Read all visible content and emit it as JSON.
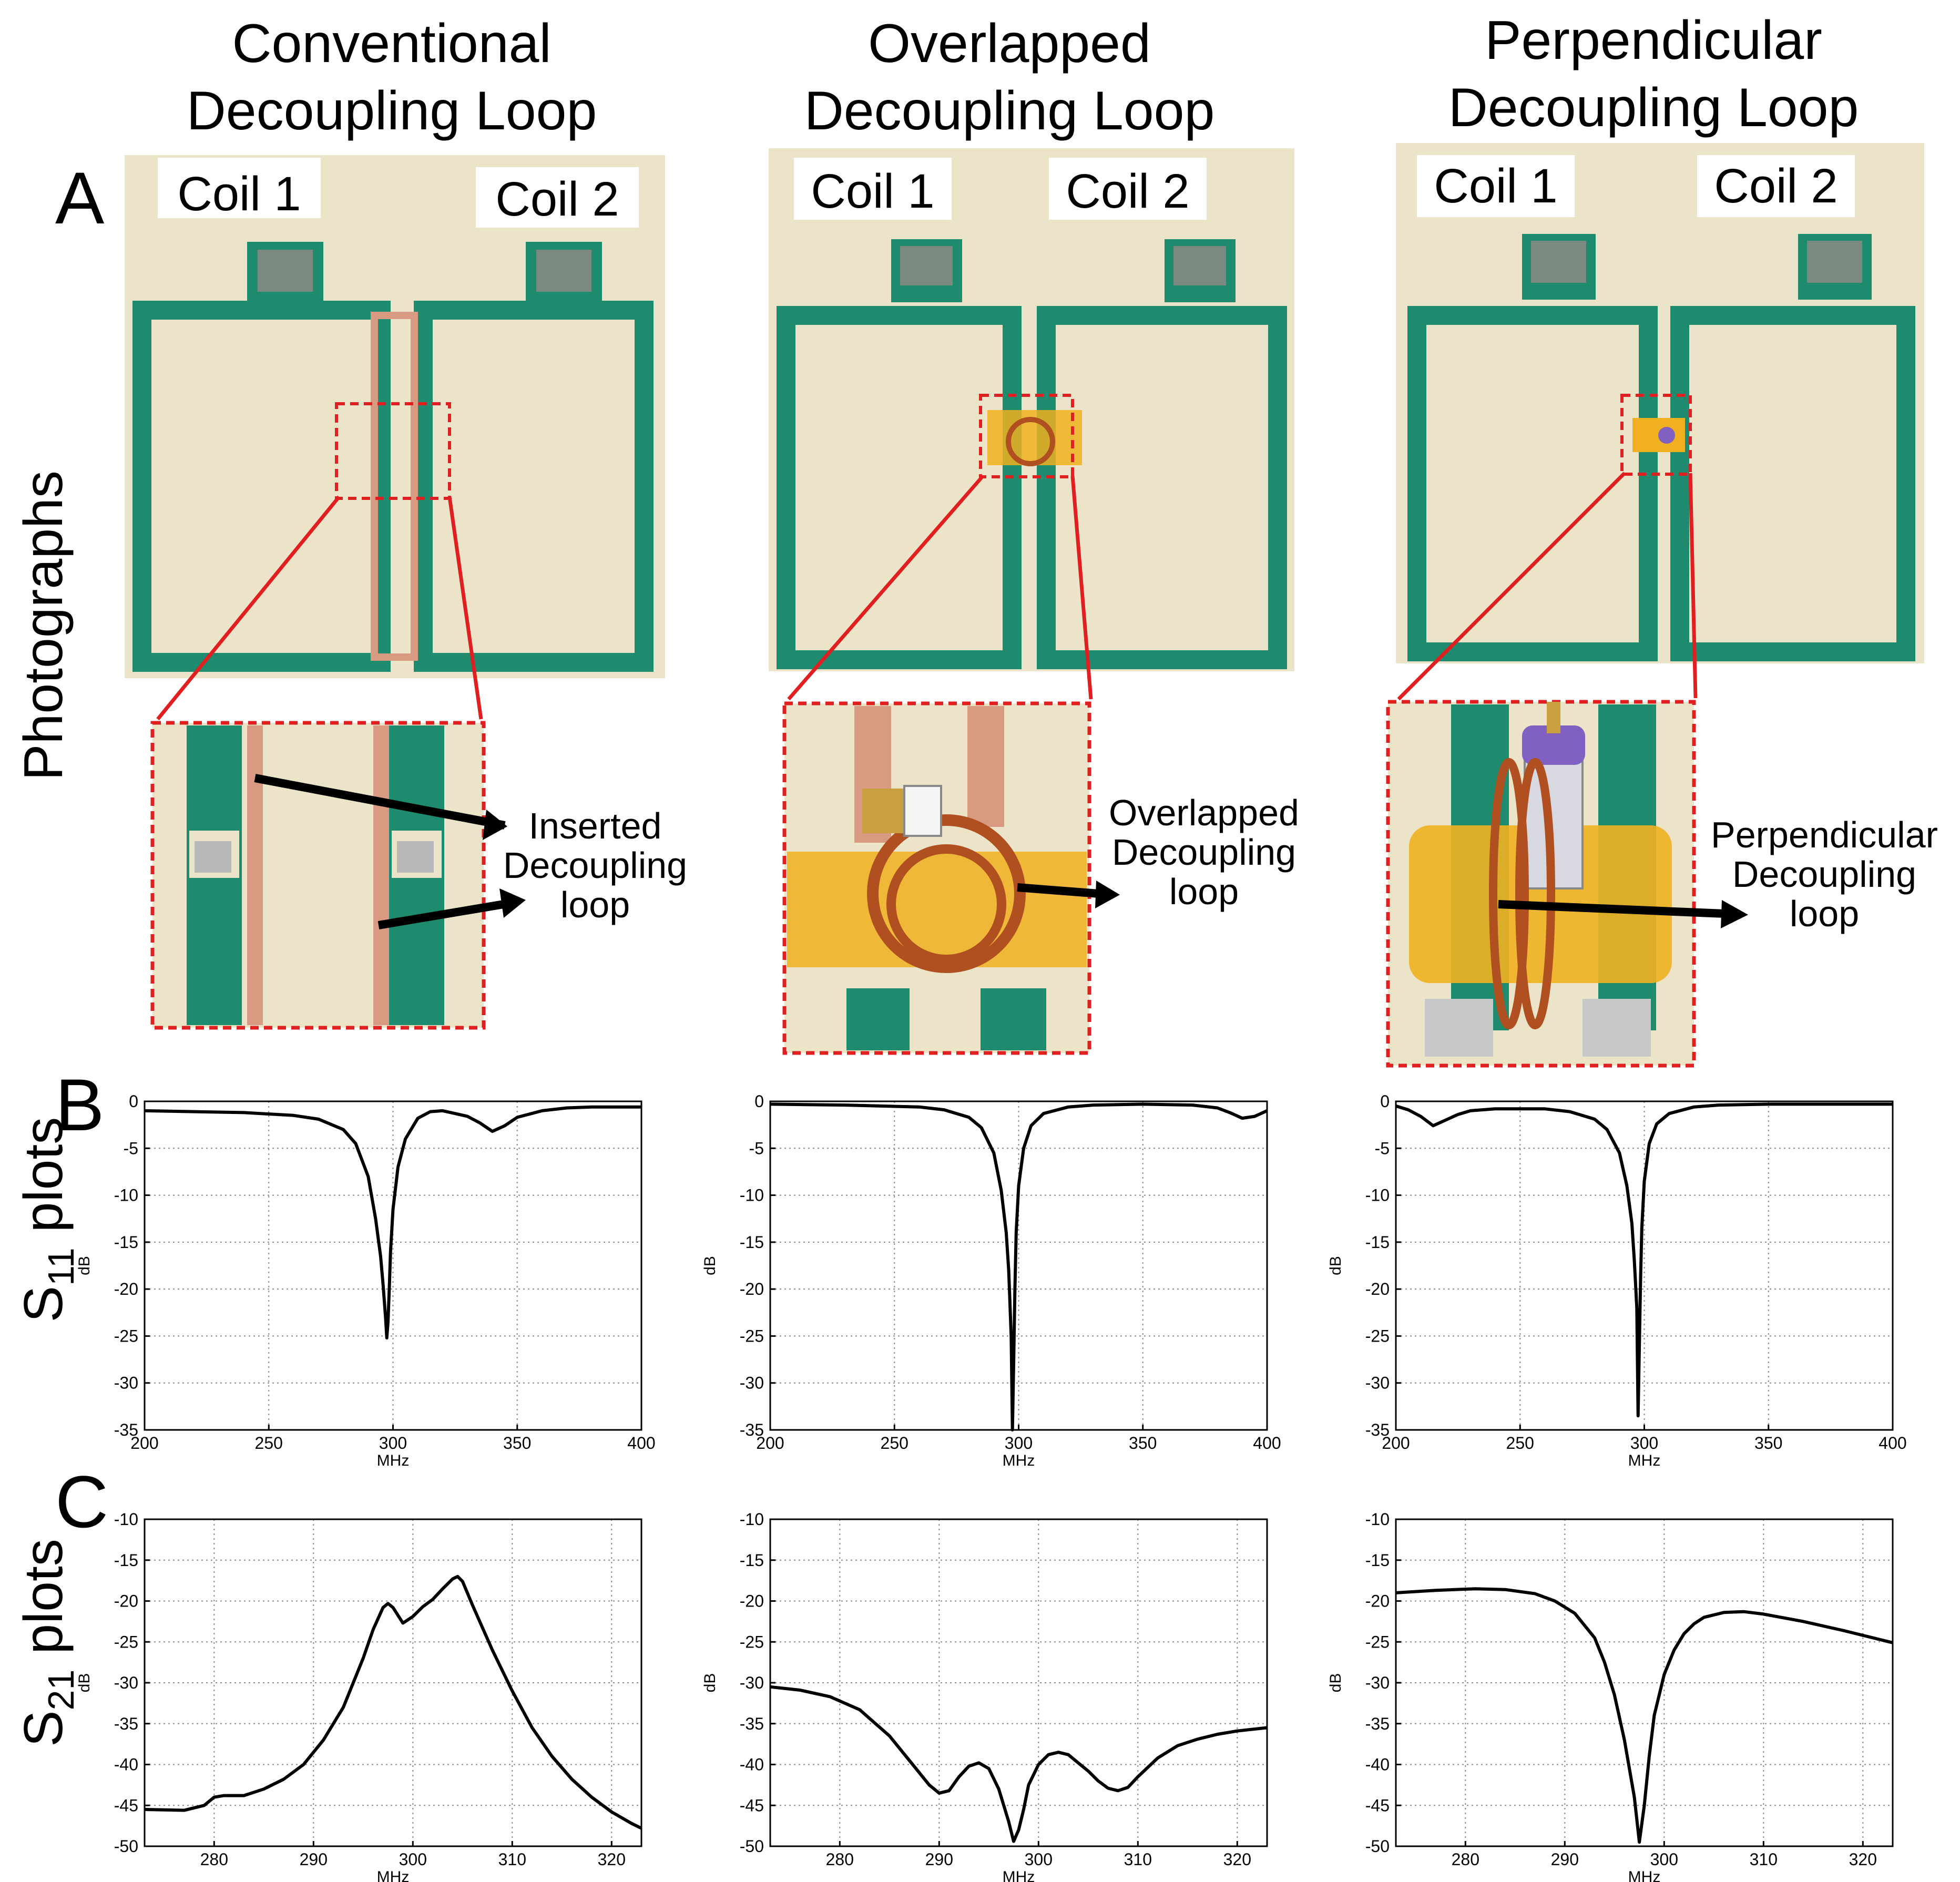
{
  "columns": [
    {
      "title_line1": "Conventional",
      "title_line2": "Decoupling Loop",
      "coil1": "Coil 1",
      "coil2": "Coil 2",
      "callout": [
        "Inserted",
        "Decoupling",
        "loop"
      ]
    },
    {
      "title_line1": "Overlapped",
      "title_line2": "Decoupling Loop",
      "coil1": "Coil 1",
      "coil2": "Coil 2",
      "callout": [
        "Overlapped",
        "Decoupling",
        "loop"
      ]
    },
    {
      "title_line1": "Perpendicular",
      "title_line2": "Decoupling Loop",
      "coil1": "Coil 1",
      "coil2": "Coil 2",
      "callout": [
        "Perpendicular",
        "Decoupling",
        "loop"
      ]
    }
  ],
  "panel_letters": {
    "a": "A",
    "b": "B",
    "c": "C"
  },
  "row_labels": {
    "photos": "Photographs",
    "s11_base": "S",
    "s11_sub": "11",
    "s11_rest": " plots",
    "s21_base": "S",
    "s21_sub": "21",
    "s21_rest": " plots"
  },
  "colors": {
    "board": "#ECE4C8",
    "frame": "#1E8A6E",
    "copper": "#D89A80",
    "callout": "#E02020",
    "tape": "#F0B020",
    "coil": "#B05020"
  },
  "chart_data": [
    {
      "id": "s11_conventional",
      "type": "line",
      "xlabel": "MHz",
      "ylabel": "dB",
      "xlim": [
        200,
        400
      ],
      "ylim": [
        -35,
        0
      ],
      "xticks": [
        200,
        250,
        300,
        350,
        400
      ],
      "yticks": [
        0,
        -5,
        -10,
        -15,
        -20,
        -25,
        -30,
        -35
      ],
      "grid": true,
      "x": [
        200,
        220,
        240,
        260,
        270,
        280,
        285,
        290,
        293,
        295,
        296,
        297,
        297.5,
        298,
        298.5,
        299,
        300,
        302,
        305,
        310,
        315,
        320,
        325,
        330,
        335,
        340,
        345,
        350,
        360,
        370,
        380,
        390,
        400
      ],
      "y": [
        -1.0,
        -1.1,
        -1.2,
        -1.5,
        -1.9,
        -3.0,
        -4.5,
        -8.0,
        -12.5,
        -16.5,
        -19.5,
        -23.0,
        -25.2,
        -23.5,
        -20.0,
        -16.0,
        -11.5,
        -7.0,
        -4.0,
        -1.8,
        -1.1,
        -1.0,
        -1.3,
        -1.6,
        -2.3,
        -3.2,
        -2.6,
        -1.7,
        -1.0,
        -0.7,
        -0.6,
        -0.6,
        -0.6
      ]
    },
    {
      "id": "s11_overlapped",
      "type": "line",
      "xlabel": "MHz",
      "ylabel": "dB",
      "xlim": [
        200,
        400
      ],
      "ylim": [
        -35,
        0
      ],
      "xticks": [
        200,
        250,
        300,
        350,
        400
      ],
      "yticks": [
        0,
        -5,
        -10,
        -15,
        -20,
        -25,
        -30,
        -35
      ],
      "grid": true,
      "x": [
        200,
        230,
        260,
        270,
        280,
        285,
        290,
        293,
        295,
        296,
        297,
        297.5,
        298,
        298.5,
        299,
        300,
        302,
        305,
        310,
        320,
        330,
        350,
        370,
        380,
        385,
        390,
        395,
        400
      ],
      "y": [
        -0.3,
        -0.4,
        -0.6,
        -0.9,
        -1.7,
        -2.8,
        -5.5,
        -9.5,
        -14.0,
        -18.0,
        -25.0,
        -35.0,
        -28.0,
        -20.0,
        -14.0,
        -9.0,
        -5.0,
        -2.6,
        -1.3,
        -0.6,
        -0.4,
        -0.3,
        -0.4,
        -0.7,
        -1.2,
        -1.8,
        -1.6,
        -1.0
      ]
    },
    {
      "id": "s11_perpendicular",
      "type": "line",
      "xlabel": "MHz",
      "ylabel": "dB",
      "xlim": [
        200,
        400
      ],
      "ylim": [
        -35,
        0
      ],
      "xticks": [
        200,
        250,
        300,
        350,
        400
      ],
      "yticks": [
        0,
        -5,
        -10,
        -15,
        -20,
        -25,
        -30,
        -35
      ],
      "grid": true,
      "x": [
        200,
        205,
        210,
        215,
        220,
        225,
        230,
        240,
        260,
        270,
        280,
        285,
        290,
        293,
        295,
        296,
        297,
        297.5,
        298,
        298.5,
        299,
        300,
        302,
        305,
        310,
        320,
        330,
        350,
        370,
        400
      ],
      "y": [
        -0.5,
        -0.9,
        -1.6,
        -2.6,
        -2.0,
        -1.4,
        -1.0,
        -0.8,
        -0.8,
        -1.1,
        -1.9,
        -3.0,
        -5.5,
        -9.0,
        -13.0,
        -17.0,
        -22.0,
        -33.5,
        -26.0,
        -19.0,
        -13.5,
        -8.5,
        -4.5,
        -2.4,
        -1.3,
        -0.6,
        -0.4,
        -0.3,
        -0.3,
        -0.3
      ]
    },
    {
      "id": "s21_conventional",
      "type": "line",
      "xlabel": "MHz",
      "ylabel": "dB",
      "xlim": [
        273,
        323
      ],
      "ylim": [
        -50,
        -10
      ],
      "xticks": [
        280,
        290,
        300,
        310,
        320
      ],
      "yticks": [
        -10,
        -15,
        -20,
        -25,
        -30,
        -35,
        -40,
        -45,
        -50
      ],
      "grid": true,
      "x": [
        273,
        277,
        279,
        280,
        281,
        283,
        285,
        287,
        289,
        291,
        293,
        295,
        296,
        297,
        297.5,
        298,
        299,
        300,
        301,
        302,
        303,
        304,
        304.5,
        305,
        306,
        308,
        310,
        312,
        314,
        316,
        318,
        320,
        322,
        323
      ],
      "y": [
        -45.5,
        -45.6,
        -45.0,
        -44.0,
        -43.8,
        -43.8,
        -43.0,
        -41.8,
        -40.0,
        -37.0,
        -33.0,
        -27.0,
        -23.5,
        -20.8,
        -20.3,
        -20.8,
        -22.7,
        -21.9,
        -20.7,
        -19.8,
        -18.5,
        -17.3,
        -17.0,
        -17.6,
        -20.5,
        -26.0,
        -31.0,
        -35.5,
        -39.0,
        -41.8,
        -44.0,
        -45.8,
        -47.2,
        -47.8
      ]
    },
    {
      "id": "s21_overlapped",
      "type": "line",
      "xlabel": "MHz",
      "ylabel": "dB",
      "xlim": [
        273,
        323
      ],
      "ylim": [
        -50,
        -10
      ],
      "xticks": [
        280,
        290,
        300,
        310,
        320
      ],
      "yticks": [
        -10,
        -15,
        -20,
        -25,
        -30,
        -35,
        -40,
        -45,
        -50
      ],
      "grid": true,
      "x": [
        273,
        276,
        279,
        282,
        285,
        287,
        289,
        290,
        291,
        292,
        293,
        294,
        295,
        296,
        297,
        297.5,
        298,
        298.5,
        299,
        300,
        301,
        302,
        303,
        304,
        305,
        306,
        307,
        308,
        309,
        310,
        312,
        314,
        316,
        318,
        320,
        323
      ],
      "y": [
        -30.5,
        -30.9,
        -31.7,
        -33.3,
        -36.5,
        -39.5,
        -42.5,
        -43.5,
        -43.2,
        -41.5,
        -40.2,
        -39.8,
        -40.5,
        -43.0,
        -47.0,
        -49.4,
        -48.0,
        -45.5,
        -42.5,
        -40.0,
        -38.8,
        -38.5,
        -38.8,
        -39.8,
        -40.8,
        -42.0,
        -42.9,
        -43.2,
        -42.8,
        -41.5,
        -39.2,
        -37.7,
        -36.9,
        -36.3,
        -35.9,
        -35.5
      ]
    },
    {
      "id": "s21_perpendicular",
      "type": "line",
      "xlabel": "MHz",
      "ylabel": "dB",
      "xlim": [
        273,
        323
      ],
      "ylim": [
        -50,
        -10
      ],
      "xticks": [
        280,
        290,
        300,
        310,
        320
      ],
      "yticks": [
        -10,
        -15,
        -20,
        -25,
        -30,
        -35,
        -40,
        -45,
        -50
      ],
      "grid": true,
      "x": [
        273,
        277,
        281,
        284,
        287,
        289,
        291,
        293,
        294,
        295,
        296,
        297,
        297.5,
        298,
        298.5,
        299,
        300,
        301,
        302,
        303,
        304,
        306,
        308,
        310,
        314,
        318,
        323
      ],
      "y": [
        -19.0,
        -18.7,
        -18.5,
        -18.6,
        -19.1,
        -20.0,
        -21.5,
        -24.5,
        -27.5,
        -31.5,
        -37.0,
        -44.0,
        -49.5,
        -45.0,
        -39.0,
        -34.0,
        -29.0,
        -26.0,
        -24.0,
        -22.8,
        -22.0,
        -21.4,
        -21.3,
        -21.6,
        -22.5,
        -23.6,
        -25.1
      ]
    }
  ]
}
